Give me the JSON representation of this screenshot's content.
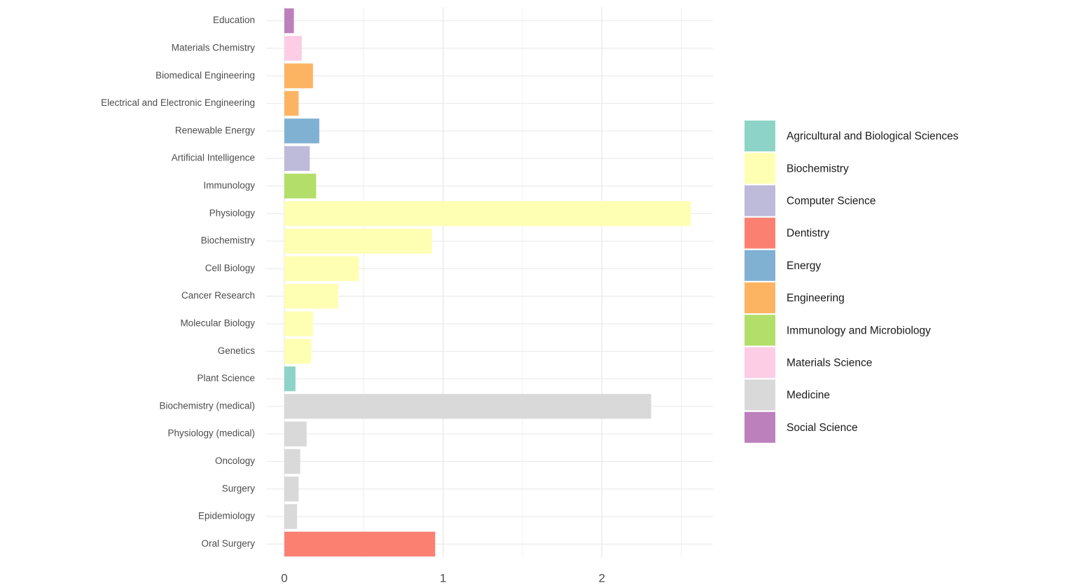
{
  "chart_data": {
    "type": "barh",
    "categories": [
      "Education",
      "Materials Chemistry",
      "Biomedical Engineering",
      "Electrical and Electronic Engineering",
      "Renewable Energy",
      "Artificial Intelligence",
      "Immunology",
      "Physiology",
      "Biochemistry",
      "Cell Biology",
      "Cancer Research",
      "Molecular Biology",
      "Genetics",
      "Plant Science",
      "Biochemistry (medical)",
      "Physiology (medical)",
      "Oncology",
      "Surgery",
      "Epidemiology",
      "Oral Surgery"
    ],
    "values": [
      0.06,
      0.11,
      0.18,
      0.09,
      0.22,
      0.16,
      0.2,
      2.56,
      0.93,
      0.47,
      0.34,
      0.18,
      0.17,
      0.07,
      2.31,
      0.14,
      0.1,
      0.09,
      0.08,
      0.95
    ],
    "groups": [
      "Social Science",
      "Materials Science",
      "Engineering",
      "Engineering",
      "Energy",
      "Computer Science",
      "Immunology and Microbiology",
      "Biochemistry",
      "Biochemistry",
      "Biochemistry",
      "Biochemistry",
      "Biochemistry",
      "Biochemistry",
      "Agricultural and Biological Sciences",
      "Medicine",
      "Medicine",
      "Medicine",
      "Medicine",
      "Medicine",
      "Dentistry"
    ],
    "legend": [
      {
        "name": "Agricultural and Biological Sciences",
        "color": "#8dd3c7"
      },
      {
        "name": "Biochemistry",
        "color": "#ffffb3"
      },
      {
        "name": "Computer Science",
        "color": "#bebada"
      },
      {
        "name": "Dentistry",
        "color": "#fb8072"
      },
      {
        "name": "Energy",
        "color": "#80b1d3"
      },
      {
        "name": "Engineering",
        "color": "#fdb462"
      },
      {
        "name": "Immunology and Microbiology",
        "color": "#b3de69"
      },
      {
        "name": "Materials Science",
        "color": "#fccde5"
      },
      {
        "name": "Medicine",
        "color": "#d9d9d9"
      },
      {
        "name": "Social Science",
        "color": "#bc80bd"
      }
    ],
    "xlim": [
      0,
      2.7
    ],
    "xticks": [
      0,
      1,
      2
    ],
    "minor_xticks": [
      0.5,
      1.5,
      2.5
    ],
    "grid": true,
    "legend_position": "right"
  }
}
